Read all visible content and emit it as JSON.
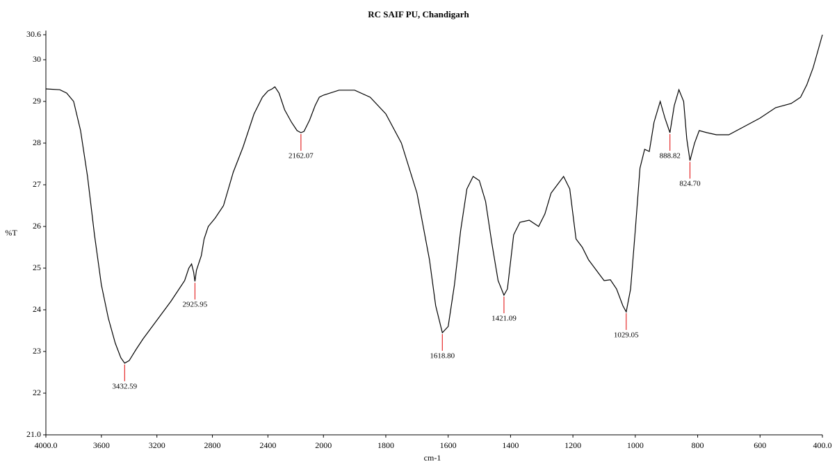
{
  "chart_data": {
    "type": "line",
    "title": "RC SAIF PU, Chandigarh",
    "xlabel": "cm-1",
    "ylabel": "%T",
    "xlim": [
      4000,
      400
    ],
    "xticks": [
      {
        "value": 4000,
        "label": "4000.0"
      },
      3600,
      3200,
      2800,
      2400,
      2000,
      1800,
      1600,
      1400,
      1200,
      1000,
      800,
      600,
      {
        "value": 400,
        "label": "400.0"
      }
    ],
    "ylim": [
      21,
      30.6
    ],
    "yticks": [
      {
        "value": 21,
        "label": "21.0"
      },
      22,
      23,
      24,
      25,
      26,
      27,
      28,
      29,
      30,
      30.6
    ],
    "series": [
      {
        "color": "#000000",
        "x": [
          4000,
          3900,
          3850,
          3800,
          3750,
          3700,
          3650,
          3600,
          3550,
          3500,
          3460,
          3432.59,
          3400,
          3350,
          3300,
          3200,
          3100,
          3000,
          2970,
          2950,
          2935,
          2925.95,
          2915,
          2880,
          2860,
          2830,
          2780,
          2720,
          2650,
          2580,
          2500,
          2440,
          2400,
          2370,
          2350,
          2320,
          2280,
          2230,
          2190,
          2162.07,
          2140,
          2100,
          2060,
          2030,
          2000,
          1950,
          1900,
          1850,
          1800,
          1750,
          1700,
          1660,
          1640,
          1618.8,
          1600,
          1580,
          1560,
          1540,
          1520,
          1500,
          1480,
          1460,
          1440,
          1421.09,
          1410,
          1390,
          1370,
          1340,
          1310,
          1290,
          1270,
          1250,
          1230,
          1210,
          1190,
          1170,
          1150,
          1120,
          1100,
          1080,
          1060,
          1040,
          1029.05,
          1015,
          1000,
          985,
          970,
          955,
          940,
          920,
          905,
          888.82,
          875,
          860,
          845,
          835,
          824.7,
          810,
          795,
          770,
          740,
          700,
          650,
          600,
          550,
          500,
          470,
          450,
          430,
          415,
          400
        ],
        "values": [
          29.3,
          29.28,
          29.2,
          29.0,
          28.3,
          27.2,
          25.8,
          24.6,
          23.8,
          23.2,
          22.85,
          22.72,
          22.78,
          23.05,
          23.3,
          23.75,
          24.2,
          24.7,
          25.0,
          25.1,
          24.9,
          24.68,
          24.95,
          25.3,
          25.7,
          26.0,
          26.2,
          26.5,
          27.3,
          27.9,
          28.7,
          29.1,
          29.25,
          29.3,
          29.35,
          29.2,
          28.8,
          28.5,
          28.3,
          28.25,
          28.28,
          28.55,
          28.9,
          29.1,
          29.15,
          29.27,
          29.27,
          29.1,
          28.7,
          28.0,
          26.8,
          25.2,
          24.1,
          23.45,
          23.6,
          24.6,
          25.9,
          26.9,
          27.2,
          27.1,
          26.6,
          25.6,
          24.7,
          24.35,
          24.5,
          25.8,
          26.1,
          26.15,
          26.0,
          26.3,
          26.8,
          27.0,
          27.2,
          26.9,
          25.7,
          25.5,
          25.2,
          24.9,
          24.7,
          24.72,
          24.5,
          24.1,
          23.95,
          24.5,
          25.9,
          27.4,
          27.85,
          27.8,
          28.5,
          29.0,
          28.6,
          28.25,
          28.9,
          29.28,
          29.0,
          28.1,
          27.58,
          28.0,
          28.3,
          28.25,
          28.2,
          28.2,
          28.4,
          28.6,
          28.85,
          28.95,
          29.1,
          29.4,
          29.8,
          30.2,
          30.6
        ]
      }
    ],
    "annotations": [
      {
        "x": 3432.59,
        "y": 22.72,
        "label": "3432.59"
      },
      {
        "x": 2925.95,
        "y": 24.68,
        "label": "2925.95"
      },
      {
        "x": 2162.07,
        "y": 28.25,
        "label": "2162.07"
      },
      {
        "x": 1618.8,
        "y": 23.45,
        "label": "1618.80"
      },
      {
        "x": 1421.09,
        "y": 24.35,
        "label": "1421.09"
      },
      {
        "x": 1029.05,
        "y": 23.95,
        "label": "1029.05"
      },
      {
        "x": 888.82,
        "y": 28.25,
        "label": "888.82"
      },
      {
        "x": 824.7,
        "y": 27.58,
        "label": "824.70"
      }
    ],
    "annotation_color": "#e00000"
  }
}
